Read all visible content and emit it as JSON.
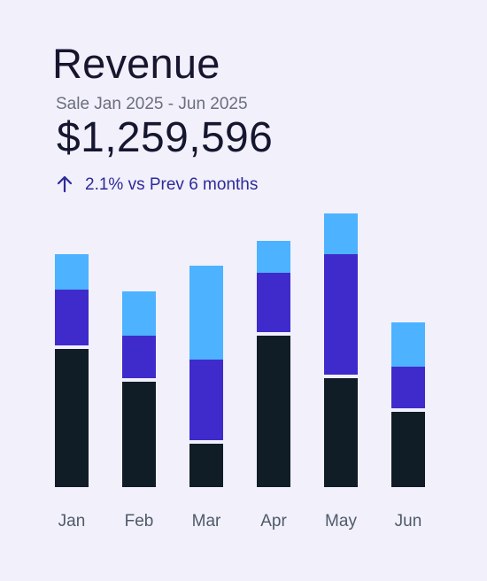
{
  "header": {
    "title": "Revenue",
    "subtitle": "Sale Jan 2025 - Jun 2025",
    "amount": "$1,259,596",
    "delta_text": "2.1% vs Prev 6 months",
    "delta_icon": "arrow-up-icon"
  },
  "chart_data": {
    "type": "bar",
    "stacked": true,
    "categories": [
      "Jan",
      "Feb",
      "Mar",
      "Apr",
      "May",
      "Jun"
    ],
    "series": [
      {
        "values": [
          160,
          123,
          53,
          175,
          127,
          89
        ],
        "color": "#101d27"
      },
      {
        "values": [
          67,
          52,
          95,
          71,
          140,
          51
        ],
        "color": "#3f2bcc"
      },
      {
        "values": [
          40,
          50,
          106,
          36,
          46,
          50
        ],
        "color": "#4db2ff"
      }
    ],
    "ylim": [
      0,
      320
    ],
    "grid": false,
    "legend": "none",
    "colors": {
      "background": "#f1f0fb",
      "tick": "#4f5b69",
      "accent": "#2d2a99"
    }
  }
}
